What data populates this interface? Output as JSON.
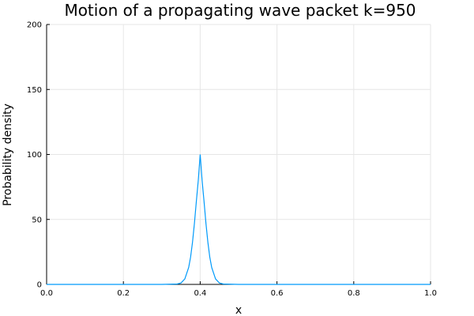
{
  "chart_data": {
    "type": "line",
    "title": "Motion of a propagating wave packet k=950",
    "xlabel": "x",
    "ylabel": "Probability density",
    "xlim": [
      0,
      1
    ],
    "ylim": [
      0,
      200
    ],
    "x_ticks": [
      "0.0",
      "0.2",
      "0.4",
      "0.6",
      "0.8",
      "1.0"
    ],
    "x_tick_values": [
      0,
      0.2,
      0.4,
      0.6,
      0.8,
      1.0
    ],
    "y_ticks": [
      "0",
      "50",
      "100",
      "150",
      "200"
    ],
    "y_tick_values": [
      0,
      50,
      100,
      150,
      200
    ],
    "grid": true,
    "legend": "none",
    "series": [
      {
        "color": "#009AFA",
        "x": [
          0,
          0.05,
          0.1,
          0.15,
          0.2,
          0.25,
          0.3,
          0.34,
          0.35,
          0.36,
          0.37,
          0.375,
          0.38,
          0.385,
          0.39,
          0.395,
          0.4,
          0.405,
          0.41,
          0.415,
          0.42,
          0.425,
          0.43,
          0.44,
          0.45,
          0.46,
          0.5,
          0.6,
          0.7,
          0.8,
          0.9,
          1.0
        ],
        "y": [
          0,
          0,
          0,
          0,
          0,
          0,
          0,
          0.3,
          1.1,
          4.2,
          13.0,
          21.0,
          32.5,
          47.0,
          63.9,
          79.9,
          100,
          79.9,
          63.9,
          47.0,
          32.5,
          21.0,
          13.0,
          4.2,
          1.1,
          0.3,
          0,
          0,
          0,
          0,
          0,
          0
        ]
      }
    ]
  }
}
